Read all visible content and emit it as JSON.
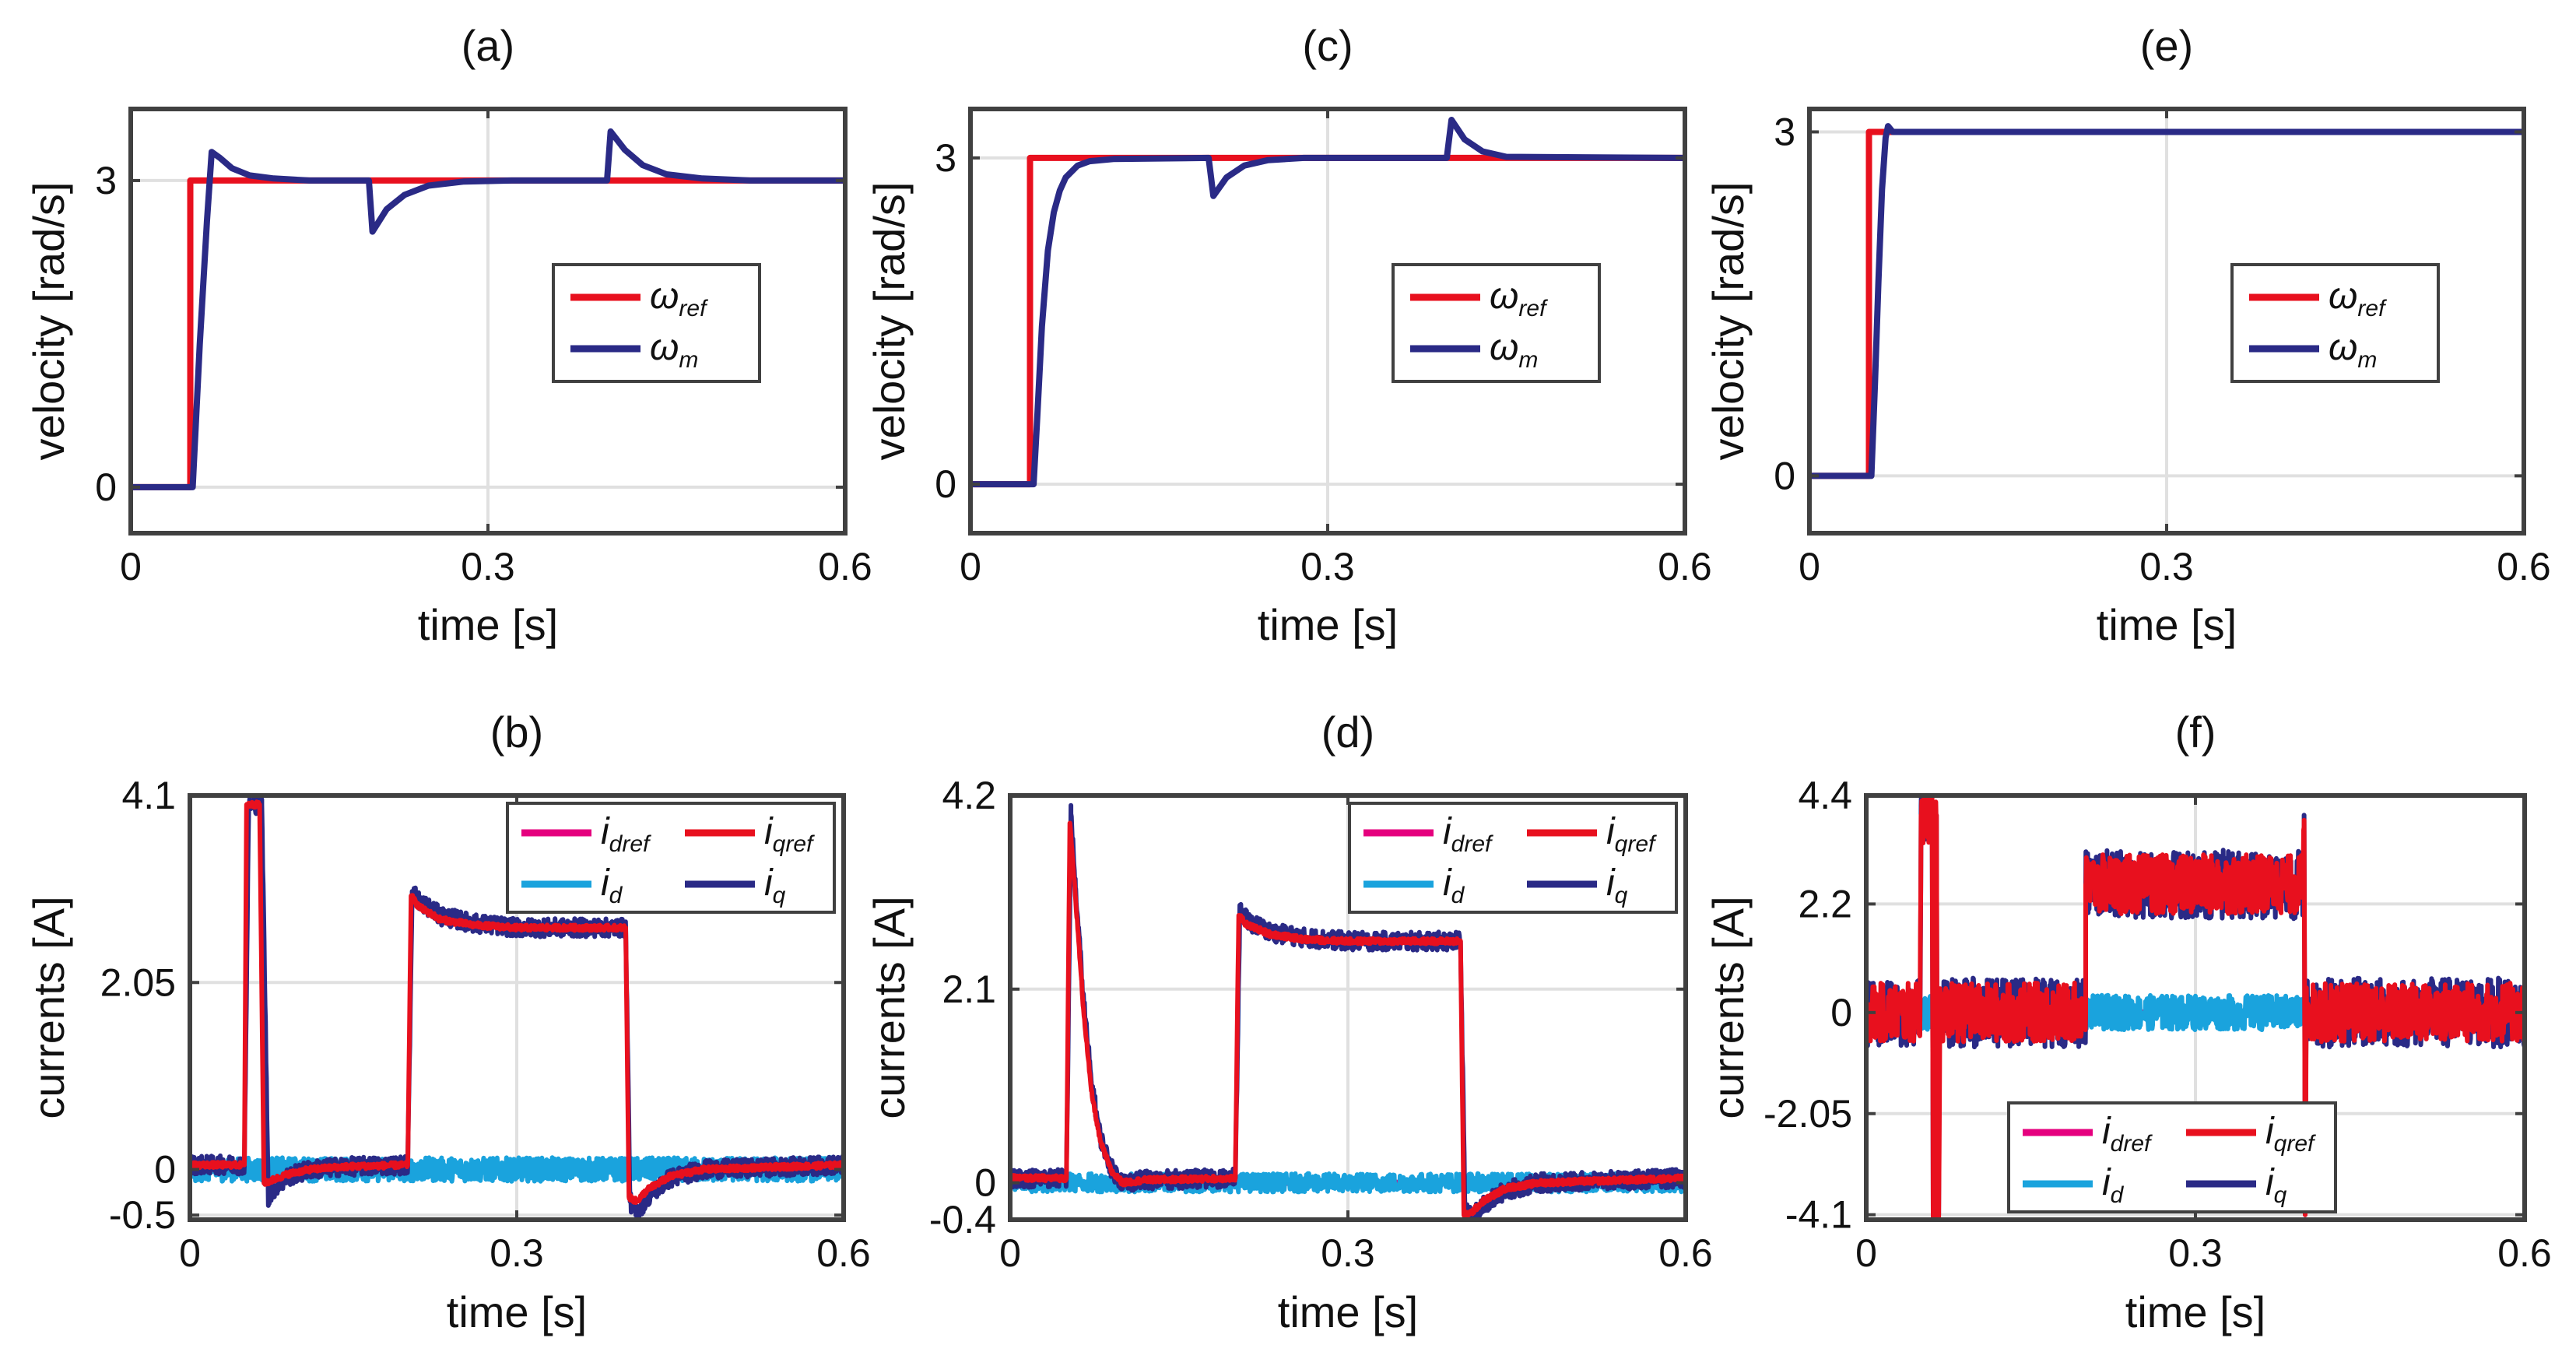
{
  "chart_data": [
    {
      "panel": "a",
      "type": "line",
      "title": "(a)",
      "xlabel": "time [s]",
      "ylabel": "velocity [rad/s]",
      "xlim": [
        0,
        0.6
      ],
      "ylim": [
        -0.45,
        3.7
      ],
      "xticks": [
        0,
        0.3,
        0.6
      ],
      "xtick_labels": [
        "0",
        "0.3",
        "0.6"
      ],
      "yticks": [
        0,
        3
      ],
      "ytick_labels": [
        "0",
        "3"
      ],
      "grid": true,
      "legend_position": "center-right",
      "legend_columns": 1,
      "series": [
        {
          "name": "ω_ref",
          "symbol": "ω",
          "sub": "ref",
          "color": "#e8101e",
          "x": [
            0,
            0.05,
            0.05,
            0.6
          ],
          "y": [
            0,
            0,
            3,
            3
          ]
        },
        {
          "name": "ω_m",
          "symbol": "ω",
          "sub": "m",
          "color": "#2a2a86",
          "x": [
            0,
            0.052,
            0.058,
            0.064,
            0.068,
            0.075,
            0.085,
            0.1,
            0.12,
            0.15,
            0.2,
            0.2,
            0.203,
            0.215,
            0.23,
            0.25,
            0.28,
            0.32,
            0.38,
            0.4,
            0.4,
            0.403,
            0.415,
            0.43,
            0.45,
            0.48,
            0.52,
            0.6
          ],
          "y": [
            0,
            0,
            1.4,
            2.6,
            3.28,
            3.22,
            3.12,
            3.05,
            3.02,
            3.0,
            3.0,
            3.0,
            2.5,
            2.72,
            2.86,
            2.95,
            2.99,
            3.0,
            3.0,
            3.0,
            3.0,
            3.48,
            3.3,
            3.15,
            3.06,
            3.02,
            3.0,
            3.0
          ]
        }
      ]
    },
    {
      "panel": "c",
      "type": "line",
      "title": "(c)",
      "xlabel": "time [s]",
      "ylabel": "velocity [rad/s]",
      "xlim": [
        0,
        0.6
      ],
      "ylim": [
        -0.45,
        3.45
      ],
      "xticks": [
        0,
        0.3,
        0.6
      ],
      "xtick_labels": [
        "0",
        "0.3",
        "0.6"
      ],
      "yticks": [
        0,
        3
      ],
      "ytick_labels": [
        "0",
        "3"
      ],
      "grid": true,
      "legend_position": "center-right",
      "legend_columns": 1,
      "series": [
        {
          "name": "ω_ref",
          "symbol": "ω",
          "sub": "ref",
          "color": "#e8101e",
          "x": [
            0,
            0.05,
            0.05,
            0.6
          ],
          "y": [
            0,
            0,
            3,
            3
          ]
        },
        {
          "name": "ω_m",
          "symbol": "ω",
          "sub": "m",
          "color": "#2a2a86",
          "x": [
            0,
            0.053,
            0.056,
            0.06,
            0.065,
            0.07,
            0.075,
            0.08,
            0.09,
            0.1,
            0.12,
            0.2,
            0.2,
            0.204,
            0.215,
            0.23,
            0.25,
            0.28,
            0.4,
            0.4,
            0.404,
            0.415,
            0.43,
            0.45,
            0.6
          ],
          "y": [
            0,
            0,
            0.6,
            1.45,
            2.15,
            2.5,
            2.7,
            2.82,
            2.93,
            2.97,
            2.99,
            3.0,
            3.0,
            2.65,
            2.82,
            2.93,
            2.98,
            3.0,
            3.0,
            3.0,
            3.35,
            3.17,
            3.06,
            3.01,
            3.0
          ]
        }
      ]
    },
    {
      "panel": "e",
      "type": "line",
      "title": "(e)",
      "xlabel": "time [s]",
      "ylabel": "velocity [rad/s]",
      "xlim": [
        0,
        0.6
      ],
      "ylim": [
        -0.5,
        3.2
      ],
      "xticks": [
        0,
        0.3,
        0.6
      ],
      "xtick_labels": [
        "0",
        "0.3",
        "0.6"
      ],
      "yticks": [
        0,
        3
      ],
      "ytick_labels": [
        "0",
        "3"
      ],
      "grid": true,
      "legend_position": "center-right",
      "legend_columns": 1,
      "series": [
        {
          "name": "ω_ref",
          "symbol": "ω",
          "sub": "ref",
          "color": "#e8101e",
          "x": [
            0,
            0.05,
            0.05,
            0.6
          ],
          "y": [
            0,
            0,
            3,
            3
          ]
        },
        {
          "name": "ω_m",
          "symbol": "ω",
          "sub": "m",
          "color": "#2a2a86",
          "x": [
            0,
            0.052,
            0.055,
            0.058,
            0.061,
            0.064,
            0.066,
            0.07,
            0.08,
            0.6
          ],
          "y": [
            0,
            0,
            0.8,
            1.7,
            2.5,
            2.95,
            3.05,
            3.0,
            3.0,
            3.0
          ]
        }
      ]
    },
    {
      "panel": "b",
      "type": "line",
      "title": "(b)",
      "xlabel": "time [s]",
      "ylabel": "currents [A]",
      "xlim": [
        0,
        0.6
      ],
      "ylim": [
        -0.55,
        4.1
      ],
      "xticks": [
        0,
        0.3,
        0.6
      ],
      "xtick_labels": [
        "0",
        "0.3",
        "0.6"
      ],
      "yticks": [
        -0.5,
        0,
        2.05,
        4.1
      ],
      "ytick_labels": [
        "-0.5",
        "0",
        "2.05",
        "4.1"
      ],
      "grid": true,
      "legend_position": "top-right",
      "legend_columns": 2,
      "series": [
        {
          "name": "i_dref",
          "symbol": "i",
          "sub": "dref",
          "color": "#e5007e",
          "x": [
            0,
            0.6
          ],
          "y": [
            0,
            0
          ]
        },
        {
          "name": "i_d",
          "symbol": "i",
          "sub": "d",
          "color": "#1aa3dd",
          "noise": 0.13,
          "x": [
            0,
            0.6
          ],
          "y": [
            0,
            0
          ]
        },
        {
          "name": "i_q",
          "symbol": "i",
          "sub": "q",
          "color": "#2a2a86",
          "noise": 0.1,
          "x": [
            0,
            0.05,
            0.054,
            0.066,
            0.072,
            0.078,
            0.09,
            0.11,
            0.14,
            0.2,
            0.204,
            0.21,
            0.23,
            0.26,
            0.3,
            0.4,
            0.404,
            0.41,
            0.42,
            0.44,
            0.47,
            0.6
          ],
          "y": [
            0.05,
            0.05,
            4.0,
            4.0,
            -0.3,
            -0.2,
            -0.08,
            0,
            0.03,
            0.05,
            3.05,
            2.95,
            2.78,
            2.7,
            2.65,
            2.65,
            -0.35,
            -0.48,
            -0.3,
            -0.1,
            0.0,
            0.05
          ]
        },
        {
          "name": "i_qref",
          "symbol": "i",
          "sub": "qref",
          "color": "#e8101e",
          "noise": 0.03,
          "x": [
            0,
            0.05,
            0.052,
            0.064,
            0.068,
            0.075,
            0.09,
            0.11,
            0.14,
            0.2,
            0.203,
            0.21,
            0.23,
            0.26,
            0.3,
            0.4,
            0.403,
            0.41,
            0.42,
            0.44,
            0.47,
            0.6
          ],
          "y": [
            0.05,
            0.05,
            4.0,
            4.0,
            -0.15,
            -0.12,
            -0.05,
            0,
            0.03,
            0.05,
            3.0,
            2.88,
            2.74,
            2.68,
            2.65,
            2.65,
            -0.3,
            -0.35,
            -0.22,
            -0.08,
            0.0,
            0.05
          ]
        }
      ]
    },
    {
      "panel": "d",
      "type": "line",
      "title": "(d)",
      "xlabel": "time [s]",
      "ylabel": "currents [A]",
      "xlim": [
        0,
        0.6
      ],
      "ylim": [
        -0.4,
        4.2
      ],
      "xticks": [
        0,
        0.3,
        0.6
      ],
      "xtick_labels": [
        "0",
        "0.3",
        "0.6"
      ],
      "yticks": [
        -0.4,
        0,
        2.1,
        4.2
      ],
      "ytick_labels": [
        "-0.4",
        "0",
        "2.1",
        "4.2"
      ],
      "grid": true,
      "legend_position": "top-right",
      "legend_columns": 2,
      "series": [
        {
          "name": "i_dref",
          "symbol": "i",
          "sub": "dref",
          "color": "#e5007e",
          "x": [
            0,
            0.6
          ],
          "y": [
            0,
            0
          ]
        },
        {
          "name": "i_d",
          "symbol": "i",
          "sub": "d",
          "color": "#1aa3dd",
          "noise": 0.1,
          "x": [
            0,
            0.6
          ],
          "y": [
            0,
            0
          ]
        },
        {
          "name": "i_q",
          "symbol": "i",
          "sub": "q",
          "color": "#2a2a86",
          "noise": 0.1,
          "x": [
            0,
            0.05,
            0.054,
            0.058,
            0.065,
            0.072,
            0.08,
            0.09,
            0.1,
            0.12,
            0.2,
            0.204,
            0.21,
            0.23,
            0.26,
            0.3,
            0.4,
            0.404,
            0.41,
            0.42,
            0.44,
            0.47,
            0.6
          ],
          "y": [
            0.05,
            0.05,
            4.0,
            3.2,
            2.0,
            1.1,
            0.5,
            0.15,
            0.0,
            0.03,
            0.05,
            2.95,
            2.85,
            2.72,
            2.66,
            2.62,
            2.62,
            -0.3,
            -0.38,
            -0.25,
            -0.08,
            0.0,
            0.05
          ]
        },
        {
          "name": "i_qref",
          "symbol": "i",
          "sub": "qref",
          "color": "#e8101e",
          "noise": 0.03,
          "x": [
            0,
            0.05,
            0.053,
            0.058,
            0.065,
            0.072,
            0.08,
            0.09,
            0.1,
            0.12,
            0.2,
            0.203,
            0.21,
            0.23,
            0.26,
            0.3,
            0.4,
            0.403,
            0.41,
            0.42,
            0.44,
            0.47,
            0.6
          ],
          "y": [
            0.05,
            0.05,
            3.9,
            3.1,
            1.9,
            1.0,
            0.45,
            0.12,
            0.0,
            0.03,
            0.05,
            2.9,
            2.8,
            2.7,
            2.64,
            2.62,
            2.62,
            -0.35,
            -0.32,
            -0.2,
            -0.06,
            0.0,
            0.05
          ]
        }
      ]
    },
    {
      "panel": "f",
      "type": "line",
      "title": "(f)",
      "xlabel": "time [s]",
      "ylabel": "currents [A]",
      "xlim": [
        0,
        0.6
      ],
      "ylim": [
        -4.2,
        4.4
      ],
      "xticks": [
        0,
        0.3,
        0.6
      ],
      "xtick_labels": [
        "0",
        "0.3",
        "0.6"
      ],
      "yticks": [
        -4.1,
        -2.05,
        0,
        2.2,
        4.4
      ],
      "ytick_labels": [
        "-4.1",
        "-2.05",
        "0",
        "2.2",
        "4.4"
      ],
      "grid": true,
      "legend_position": "bottom-center",
      "legend_columns": 2,
      "series": [
        {
          "name": "i_dref",
          "symbol": "i",
          "sub": "dref",
          "color": "#e5007e",
          "x": [
            0,
            0.6
          ],
          "y": [
            0,
            0
          ]
        },
        {
          "name": "i_d",
          "symbol": "i",
          "sub": "d",
          "color": "#1aa3dd",
          "noise": 0.35,
          "x": [
            0,
            0.6
          ],
          "y": [
            0,
            0
          ]
        },
        {
          "name": "i_q",
          "symbol": "i",
          "sub": "q",
          "color": "#2a2a86",
          "noise": 0.7,
          "x": [
            0,
            0.049,
            0.05,
            0.055,
            0.055,
            0.06,
            0.061,
            0.062,
            0.063,
            0.064,
            0.065,
            0.066,
            0.067,
            0.2,
            0.2,
            0.398,
            0.399,
            0.4,
            0.401,
            0.6
          ],
          "y": [
            0,
            0,
            4.2,
            4.2,
            4.2,
            4.2,
            -4.1,
            -4.1,
            4.0,
            4.0,
            -4.1,
            -4.1,
            0,
            0,
            2.6,
            2.6,
            4.0,
            -4.1,
            0,
            0
          ]
        },
        {
          "name": "i_qref",
          "symbol": "i",
          "sub": "qref",
          "color": "#e8101e",
          "noise": 0.6,
          "x": [
            0,
            0.049,
            0.05,
            0.055,
            0.055,
            0.06,
            0.061,
            0.062,
            0.063,
            0.064,
            0.065,
            0.066,
            0.067,
            0.2,
            0.2,
            0.398,
            0.399,
            0.4,
            0.401,
            0.6
          ],
          "y": [
            0,
            0,
            4.0,
            4.0,
            4.0,
            4.0,
            -4.1,
            -4.1,
            4.0,
            4.0,
            -4.1,
            -4.1,
            0,
            0,
            2.6,
            2.6,
            3.9,
            -4.1,
            0,
            0
          ]
        }
      ]
    }
  ]
}
